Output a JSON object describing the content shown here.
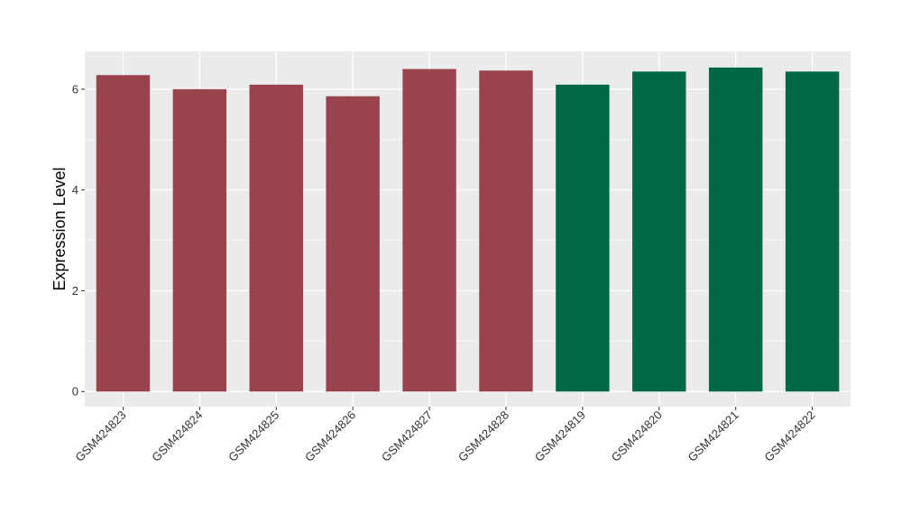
{
  "chart_data": {
    "type": "bar",
    "categories": [
      "GSM424823",
      "GSM424824",
      "GSM424825",
      "GSM424826",
      "GSM424827",
      "GSM424828",
      "GSM424819",
      "GSM424820",
      "GSM424821",
      "GSM424822"
    ],
    "values": [
      6.28,
      6.0,
      6.09,
      5.86,
      6.4,
      6.37,
      6.09,
      6.35,
      6.43,
      6.35
    ],
    "bar_colors": [
      "#99434f",
      "#99434f",
      "#99434f",
      "#99434f",
      "#99434f",
      "#99434f",
      "#006845",
      "#006845",
      "#006845",
      "#006845"
    ],
    "ylabel": "Expression Level",
    "xlabel": "",
    "ylim": [
      -0.3,
      6.75
    ],
    "yticks": [
      0,
      2,
      4,
      6
    ],
    "grid": true,
    "panel_background": "#ebebeb",
    "grid_color": "#ffffff"
  }
}
